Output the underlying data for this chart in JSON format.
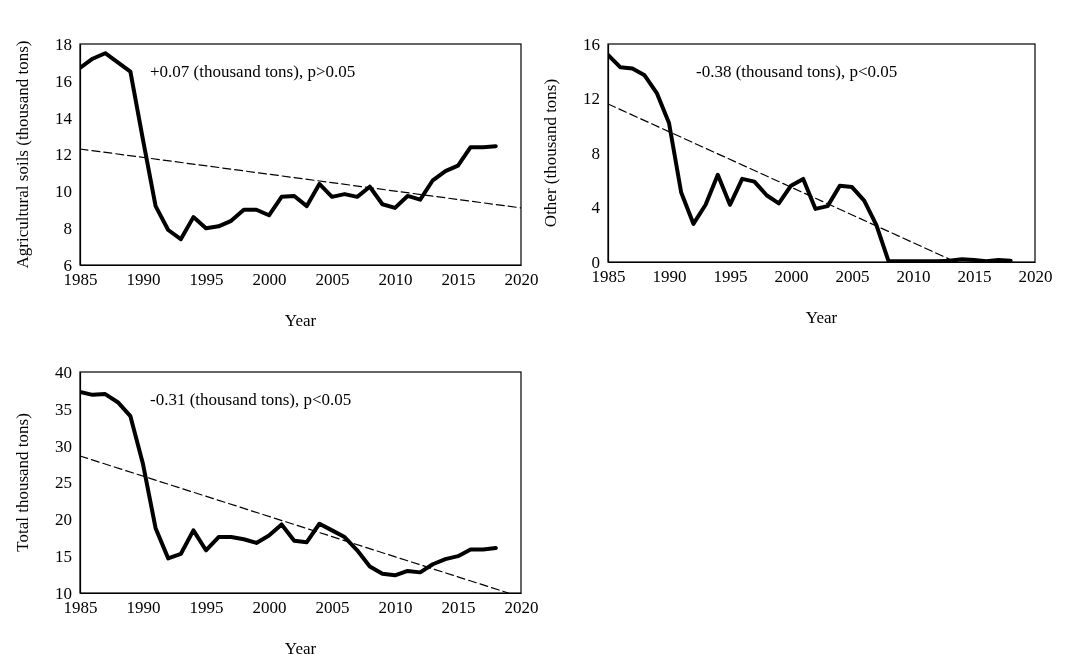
{
  "chart_data": [
    {
      "type": "line",
      "xlabel": "Year",
      "ylabel": "Agricultural soils (thousand tons)",
      "annotations": [
        "+0.07 (thousand tons), p>0.05"
      ],
      "xlim": [
        1985,
        2020
      ],
      "xticks": [
        1985,
        1990,
        1995,
        2000,
        2005,
        2010,
        2015,
        2020
      ],
      "ylim": [
        6,
        18
      ],
      "yticks": [
        6,
        8,
        10,
        12,
        14,
        16,
        18
      ],
      "x": [
        1985,
        1986,
        1987,
        1988,
        1989,
        1990,
        1991,
        1992,
        1993,
        1994,
        1995,
        1996,
        1997,
        1998,
        1999,
        2000,
        2001,
        2002,
        2003,
        2004,
        2005,
        2006,
        2007,
        2008,
        2009,
        2010,
        2011,
        2012,
        2013,
        2014,
        2015,
        2016,
        2017,
        2018
      ],
      "series": [
        {
          "color": "#000000",
          "line_style": "solid",
          "values": [
            16.7,
            17.2,
            17.5,
            17.0,
            16.5,
            12.8,
            9.2,
            7.9,
            7.4,
            8.6,
            8.0,
            8.1,
            8.4,
            9.0,
            9.0,
            8.7,
            9.7,
            9.75,
            9.2,
            10.4,
            9.7,
            9.85,
            9.7,
            10.25,
            9.3,
            9.1,
            9.75,
            9.55,
            10.6,
            11.1,
            11.4,
            12.4,
            12.4,
            12.45
          ]
        },
        {
          "type": "line",
          "color": "#000000",
          "line_style": "dashed",
          "x": [
            1985,
            2020
          ],
          "values": [
            12.3,
            9.1
          ]
        }
      ]
    },
    {
      "type": "line",
      "xlabel": "Year",
      "ylabel": "Other (thousand tons)",
      "annotations": [
        "-0.38 (thousand tons), p<0.05"
      ],
      "xlim": [
        1985,
        2020
      ],
      "xticks": [
        1985,
        1990,
        1995,
        2000,
        2005,
        2010,
        2015,
        2020
      ],
      "ylim": [
        0,
        16
      ],
      "yticks": [
        0,
        4,
        8,
        12,
        16
      ],
      "x": [
        1985,
        1986,
        1987,
        1988,
        1989,
        1990,
        1991,
        1992,
        1993,
        1994,
        1995,
        1996,
        1997,
        1998,
        1999,
        2000,
        2001,
        2002,
        2003,
        2004,
        2005,
        2006,
        2007,
        2008,
        2009,
        2010,
        2011,
        2012,
        2013,
        2014,
        2015,
        2016,
        2017,
        2018
      ],
      "series": [
        {
          "color": "#000000",
          "line_style": "solid",
          "values": [
            15.2,
            14.3,
            14.2,
            13.7,
            12.4,
            10.2,
            5.1,
            2.8,
            4.2,
            6.4,
            4.2,
            6.1,
            5.9,
            4.9,
            4.3,
            5.6,
            6.1,
            3.9,
            4.1,
            5.6,
            5.5,
            4.5,
            2.7,
            0.05,
            0.05,
            0.05,
            0.05,
            0.05,
            0.1,
            0.2,
            0.15,
            0.05,
            0.15,
            0.1
          ]
        },
        {
          "type": "line",
          "color": "#000000",
          "line_style": "dashed",
          "x": [
            1985,
            2013.5
          ],
          "values": [
            11.6,
            0
          ]
        }
      ]
    },
    {
      "type": "line",
      "xlabel": "Year",
      "ylabel": "Total thousand tons)",
      "annotations": [
        "-0.31 (thousand tons), p<0.05"
      ],
      "xlim": [
        1985,
        2020
      ],
      "xticks": [
        1985,
        1990,
        1995,
        2000,
        2005,
        2010,
        2015,
        2020
      ],
      "ylim": [
        10,
        40
      ],
      "yticks": [
        10,
        15,
        20,
        25,
        30,
        35,
        40
      ],
      "x": [
        1985,
        1986,
        1987,
        1988,
        1989,
        1990,
        1991,
        1992,
        1993,
        1994,
        1995,
        1996,
        1997,
        1998,
        1999,
        2000,
        2001,
        2002,
        2003,
        2004,
        2005,
        2006,
        2007,
        2008,
        2009,
        2010,
        2011,
        2012,
        2013,
        2014,
        2015,
        2016,
        2017,
        2018
      ],
      "series": [
        {
          "color": "#000000",
          "line_style": "solid",
          "values": [
            37.3,
            36.9,
            37.0,
            35.9,
            34.0,
            27.5,
            18.8,
            14.7,
            15.3,
            18.5,
            15.8,
            17.6,
            17.6,
            17.3,
            16.8,
            17.8,
            19.3,
            17.1,
            16.9,
            19.4,
            18.5,
            17.6,
            15.8,
            13.6,
            12.6,
            12.4,
            13.0,
            12.8,
            13.9,
            14.6,
            15.0,
            15.9,
            15.9,
            16.1
          ]
        },
        {
          "type": "line",
          "color": "#000000",
          "line_style": "dashed",
          "x": [
            1985,
            2019
          ],
          "values": [
            28.6,
            10
          ]
        }
      ]
    }
  ]
}
